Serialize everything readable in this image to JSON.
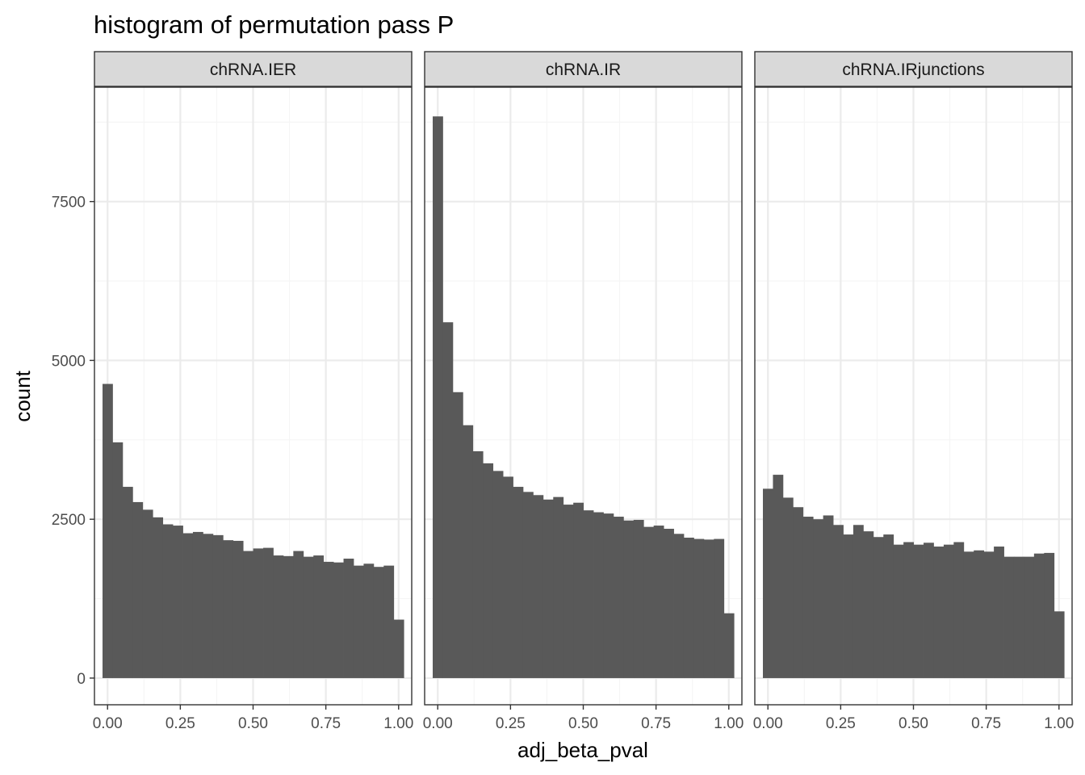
{
  "chart_data": {
    "type": "bar",
    "title": "histogram of permutation pass P",
    "xlabel": "adj_beta_pval",
    "ylabel": "count",
    "xlim": [
      -0.045,
      1.045
    ],
    "ylim": [
      -420,
      9300
    ],
    "x_ticks": [
      0.0,
      0.25,
      0.5,
      0.75,
      1.0
    ],
    "x_tick_labels": [
      "0.00",
      "0.25",
      "0.50",
      "0.75",
      "1.00"
    ],
    "y_ticks": [
      0,
      2500,
      5000,
      7500
    ],
    "y_tick_labels": [
      "0",
      "2500",
      "5000",
      "7500"
    ],
    "bin_width": 0.0345,
    "bin_centers": [
      0.0,
      0.0345,
      0.069,
      0.1035,
      0.138,
      0.1725,
      0.207,
      0.2415,
      0.276,
      0.3105,
      0.345,
      0.3795,
      0.414,
      0.4485,
      0.483,
      0.5175,
      0.552,
      0.5865,
      0.621,
      0.6555,
      0.69,
      0.7245,
      0.759,
      0.7935,
      0.828,
      0.8625,
      0.897,
      0.9315,
      0.966,
      1.0005
    ],
    "grid": true,
    "legend": "none",
    "bar_color": "#595959",
    "facets": [
      {
        "strip": "chRNA.IER",
        "values": [
          4630,
          3710,
          3010,
          2770,
          2650,
          2530,
          2420,
          2400,
          2280,
          2300,
          2270,
          2250,
          2170,
          2160,
          2000,
          2040,
          2050,
          1930,
          1920,
          2000,
          1910,
          1930,
          1830,
          1820,
          1880,
          1770,
          1800,
          1750,
          1770,
          920
        ]
      },
      {
        "strip": "chRNA.IR",
        "values": [
          8840,
          5600,
          4500,
          3980,
          3570,
          3380,
          3260,
          3170,
          3010,
          2930,
          2880,
          2810,
          2850,
          2730,
          2760,
          2640,
          2610,
          2590,
          2540,
          2480,
          2490,
          2380,
          2400,
          2350,
          2270,
          2210,
          2190,
          2180,
          2190,
          1020
        ]
      },
      {
        "strip": "chRNA.IRjunctions",
        "values": [
          2980,
          3200,
          2840,
          2690,
          2540,
          2500,
          2560,
          2410,
          2260,
          2410,
          2310,
          2220,
          2260,
          2100,
          2140,
          2100,
          2130,
          2070,
          2100,
          2140,
          1990,
          2010,
          1990,
          2070,
          1910,
          1910,
          1910,
          1960,
          1970,
          1050
        ]
      }
    ]
  },
  "colors": {
    "panel_border": "#333333",
    "strip_fill": "#d9d9d9",
    "grid_major": "#ebebeb",
    "grid_minor": "#f5f5f5",
    "bar": "#595959"
  }
}
